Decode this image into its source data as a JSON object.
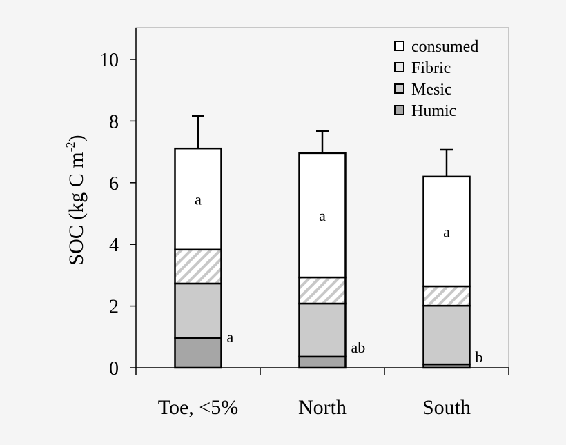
{
  "chart_data": {
    "type": "bar",
    "stacked": true,
    "categories": [
      "Toe, <5%",
      "North",
      "South"
    ],
    "ylabel": "SOC (kg C m-2)",
    "ylabel_parts": {
      "main": "SOC (kg C m",
      "sup": "-2",
      "close": ")"
    },
    "ylim": [
      0,
      10.5
    ],
    "yticks": [
      0,
      2,
      4,
      6,
      8,
      10
    ],
    "grid": false,
    "legend_position": "top-right",
    "series": [
      {
        "name": "Humic",
        "values": [
          0.96,
          0.36,
          0.11
        ],
        "color": "#a6a6a6",
        "pattern": "solid",
        "letters": [
          "a",
          "ab",
          "b"
        ]
      },
      {
        "name": "Mesic",
        "values": [
          1.77,
          1.72,
          1.9
        ],
        "color": "#cbcbcb",
        "pattern": "solid"
      },
      {
        "name": "Fibric",
        "values": [
          1.1,
          0.85,
          0.63
        ],
        "color": "#c8c8c8",
        "pattern": "hatch"
      },
      {
        "name": "consumed",
        "values": [
          3.28,
          4.03,
          3.56
        ],
        "color": "#ffffff",
        "pattern": "solid",
        "letters": [
          "a",
          "a",
          "a"
        ]
      }
    ],
    "totals": [
      7.11,
      6.96,
      6.2
    ],
    "error_bars_upper": [
      1.06,
      0.71,
      0.87
    ],
    "legend_order": [
      "consumed",
      "Fibric",
      "Mesic",
      "Humic"
    ]
  }
}
